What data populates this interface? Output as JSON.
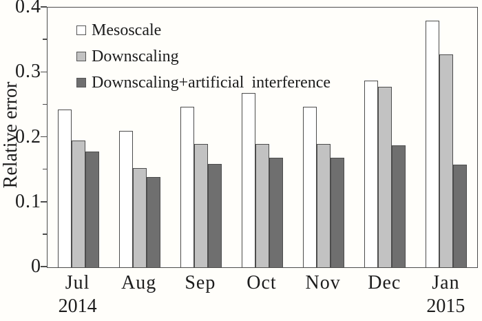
{
  "colors": {
    "background": "#fffefa",
    "axis": "#4c4c4c",
    "bar_border": "#4c4c4c",
    "mesoscale_fill": "#ffffff",
    "downscaling_fill": "#c2c2c2",
    "interference_fill": "#6f6f6f"
  },
  "legend": [
    {
      "label": "Mesoscale",
      "color": "#ffffff"
    },
    {
      "label": "Downscaling",
      "color": "#c2c2c2"
    },
    {
      "label": "Downscaling+artificial interference",
      "color": "#6f6f6f"
    }
  ],
  "chart_data": {
    "type": "bar",
    "title": "",
    "xlabel": "",
    "ylabel": "Relative error",
    "ylim": [
      0,
      0.4
    ],
    "yticks": [
      0,
      0.1,
      0.2,
      0.3,
      0.4
    ],
    "ytick_labels": [
      "0",
      "0.1",
      "0.2",
      "0.3",
      "0.4"
    ],
    "minor_tick_step": 0.05,
    "grid": false,
    "legend_position": "top-left-inside",
    "categories": [
      "Jul",
      "Aug",
      "Sep",
      "Oct",
      "Nov",
      "Dec",
      "Jan"
    ],
    "year_labels": [
      {
        "index": 0,
        "label": "2014"
      },
      {
        "index": 6,
        "label": "2015"
      }
    ],
    "series": [
      {
        "name": "Mesoscale",
        "color": "#ffffff",
        "values": [
          0.243,
          0.21,
          0.247,
          0.268,
          0.247,
          0.288,
          0.38
        ]
      },
      {
        "name": "Downscaling",
        "color": "#c2c2c2",
        "values": [
          0.195,
          0.153,
          0.19,
          0.19,
          0.19,
          0.278,
          0.328
        ]
      },
      {
        "name": "Downscaling+artificial interference",
        "color": "#6f6f6f",
        "values": [
          0.178,
          0.139,
          0.159,
          0.169,
          0.169,
          0.188,
          0.158
        ]
      }
    ]
  }
}
